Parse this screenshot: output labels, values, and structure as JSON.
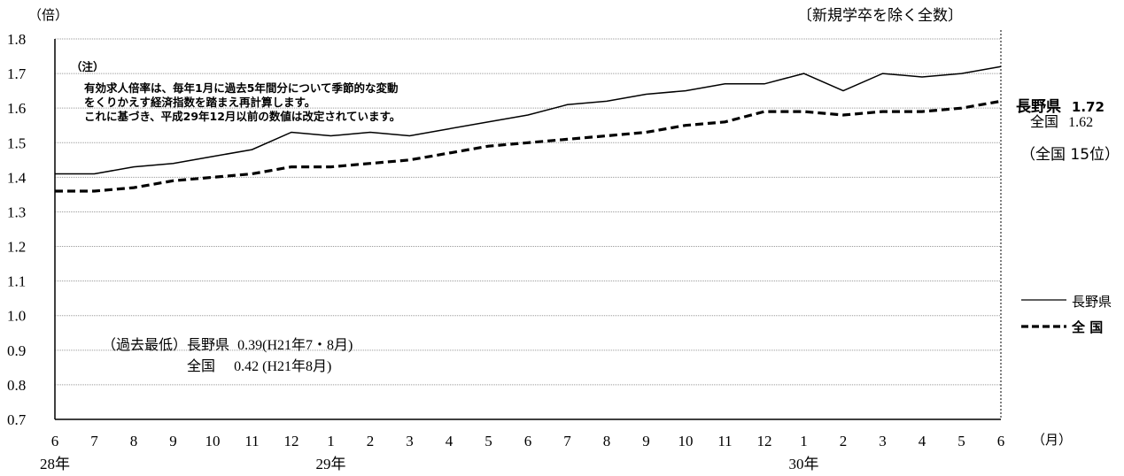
{
  "chart_data": {
    "type": "line",
    "title": "〔新規学卒を除く全数〕",
    "ylabel": "（倍）",
    "xlabel": "（月）",
    "ylim": [
      0.7,
      1.8
    ],
    "yticks": [
      "0.7",
      "0.8",
      "0.9",
      "1.0",
      "1.1",
      "1.2",
      "1.3",
      "1.4",
      "1.5",
      "1.6",
      "1.7",
      "1.8"
    ],
    "categories": [
      "6",
      "7",
      "8",
      "9",
      "10",
      "11",
      "12",
      "1",
      "2",
      "3",
      "4",
      "5",
      "6",
      "7",
      "8",
      "9",
      "10",
      "11",
      "12",
      "1",
      "2",
      "3",
      "4",
      "5",
      "6"
    ],
    "year_labels": [
      {
        "text": "28年",
        "index": 0
      },
      {
        "text": "29年",
        "index": 7
      },
      {
        "text": "30年",
        "index": 19
      }
    ],
    "grid": true,
    "series": [
      {
        "name": "長野県",
        "style": "solid",
        "values": [
          1.41,
          1.41,
          1.43,
          1.44,
          1.46,
          1.48,
          1.53,
          1.52,
          1.53,
          1.52,
          1.54,
          1.56,
          1.58,
          1.61,
          1.62,
          1.64,
          1.65,
          1.67,
          1.67,
          1.7,
          1.65,
          1.7,
          1.69,
          1.7,
          1.72
        ]
      },
      {
        "name": "全 国",
        "style": "dashed",
        "values": [
          1.36,
          1.36,
          1.37,
          1.39,
          1.4,
          1.41,
          1.43,
          1.43,
          1.44,
          1.45,
          1.47,
          1.49,
          1.5,
          1.51,
          1.52,
          1.53,
          1.55,
          1.56,
          1.59,
          1.59,
          1.58,
          1.59,
          1.59,
          1.6,
          1.62
        ]
      }
    ]
  },
  "note": {
    "heading": "（注）",
    "line1": "有効求人倍率は、毎年1月に過去5年間分について季節的な変動",
    "line2": "をくりかえす経済指数を踏まえ再計算します。",
    "line3": "これに基づき、平成29年12月以前の数値は改定されています。"
  },
  "latest": {
    "pref_label": "長野県",
    "pref_value": "1.72",
    "nat_label": "全国",
    "nat_value": "1.62",
    "rank": "（全国 15位）"
  },
  "record_low": {
    "prefix": "（過去最低）",
    "pref_label": "長野県",
    "pref_text": "0.39(H21年7・8月)",
    "nat_label": "全国",
    "nat_text": "0.42 (H21年8月)"
  },
  "legend": {
    "pref": "長野県",
    "nat": "全 国"
  }
}
